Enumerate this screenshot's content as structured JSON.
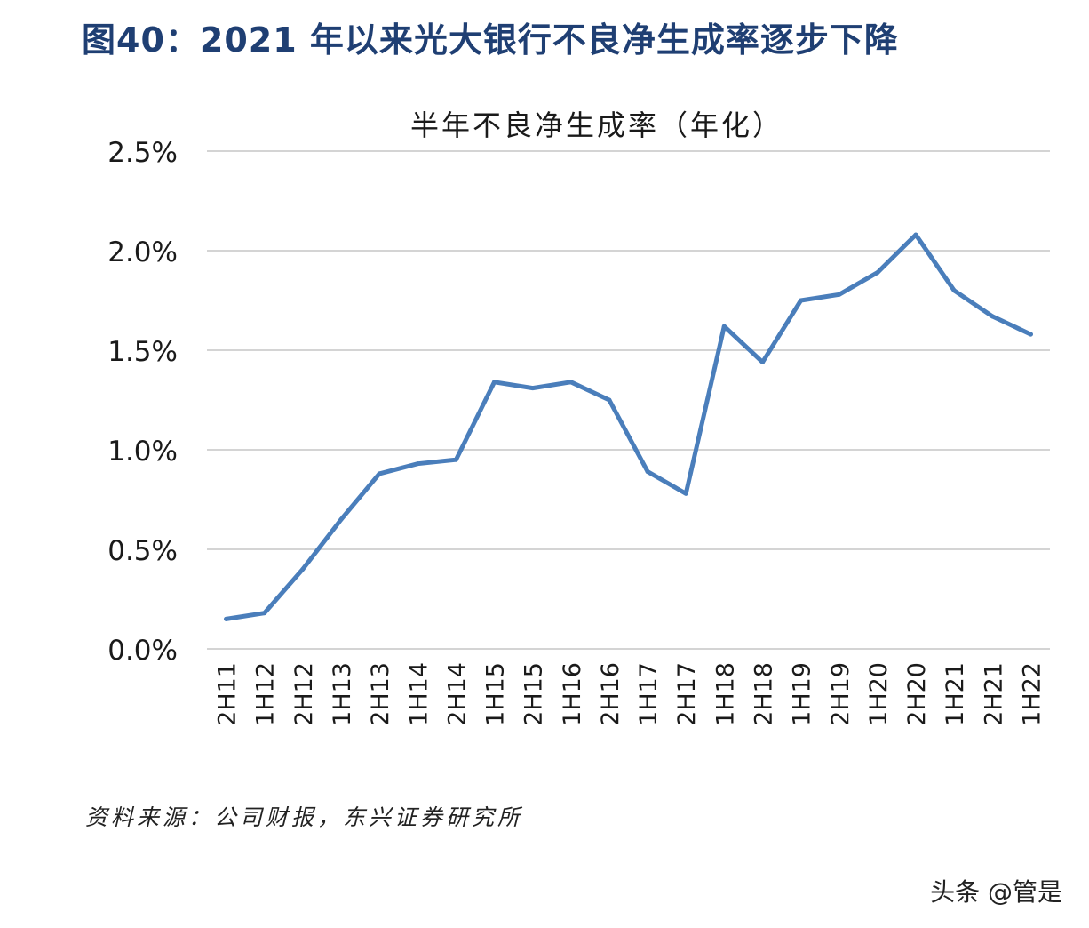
{
  "figure_title": "图40：2021 年以来光大银行不良净生成率逐步下降",
  "source_note": "资料来源：公司财报，东兴证券研究所",
  "watermark": "头条 @管是",
  "colors": {
    "title": "#1f3f73",
    "line": "#4a7ebb",
    "grid": "#d4d4d4"
  },
  "chart_data": {
    "type": "line",
    "title": "半年不良净生成率（年化）",
    "xlabel": "",
    "ylabel": "",
    "categories": [
      "2H11",
      "1H12",
      "2H12",
      "1H13",
      "2H13",
      "1H14",
      "2H14",
      "1H15",
      "2H15",
      "1H16",
      "2H16",
      "1H17",
      "2H17",
      "1H18",
      "2H18",
      "1H19",
      "2H19",
      "1H20",
      "2H20",
      "1H21",
      "2H21",
      "1H22"
    ],
    "values": [
      0.15,
      0.18,
      0.4,
      0.65,
      0.88,
      0.93,
      0.95,
      1.34,
      1.31,
      1.34,
      1.25,
      0.89,
      0.78,
      1.62,
      1.44,
      1.75,
      1.78,
      1.89,
      2.08,
      1.8,
      1.67,
      1.58
    ],
    "ylim": [
      0,
      2.5
    ],
    "yticks": [
      "0.0%",
      "0.5%",
      "1.0%",
      "1.5%",
      "2.0%",
      "2.5%"
    ],
    "ytick_values": [
      0,
      0.5,
      1.0,
      1.5,
      2.0,
      2.5
    ],
    "grid": true,
    "legend": "none"
  }
}
